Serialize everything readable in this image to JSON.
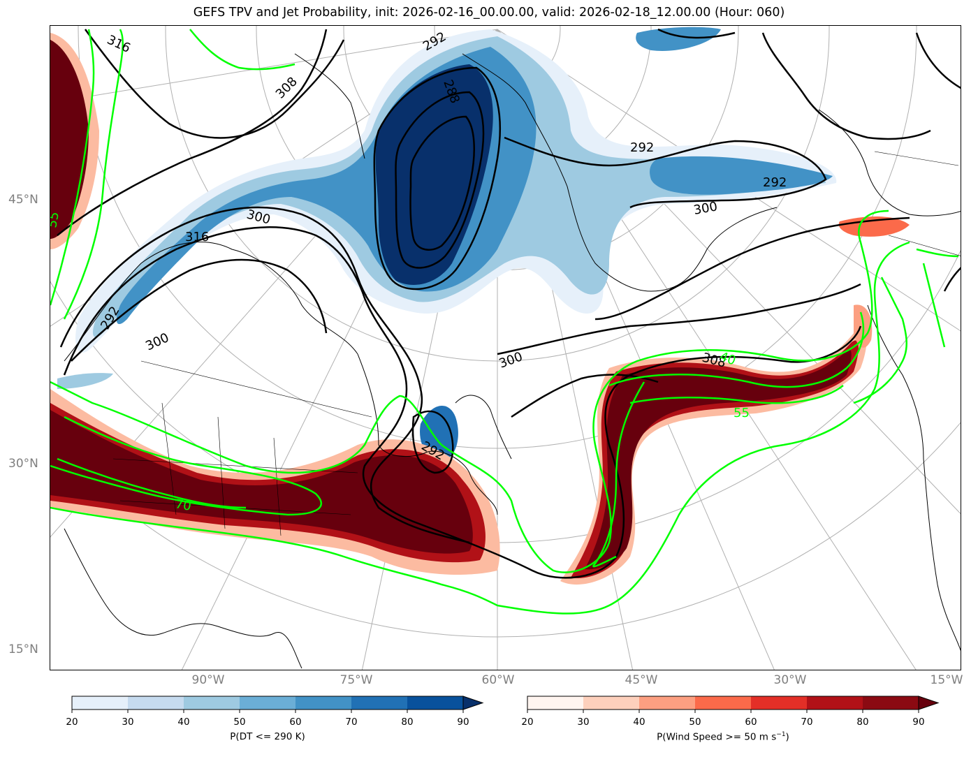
{
  "title": "GEFS TPV and Jet Probability, init: 2026-02-16_00.00.00, valid: 2026-02-18_12.00.00 (Hour: 060)",
  "lat_labels": [
    "45°N",
    "30°N",
    "15°N"
  ],
  "lon_labels": [
    "90°W",
    "75°W",
    "60°W",
    "45°W",
    "30°W",
    "15°W"
  ],
  "contour_labels": {
    "theta_black": [
      "316",
      "308",
      "292",
      "300",
      "316",
      "292",
      "300",
      "300",
      "308",
      "292",
      "300",
      "292",
      "288",
      "292"
    ],
    "jet_green": [
      "70",
      "55",
      "40",
      "55"
    ]
  },
  "colorbar_tpv": {
    "label": "P(DT <= 290 K)",
    "ticks": [
      "20",
      "30",
      "40",
      "50",
      "60",
      "70",
      "80",
      "90"
    ],
    "colors": [
      "#e6f0fa",
      "#c6dbef",
      "#9ecae1",
      "#6baed6",
      "#4292c6",
      "#2171b5",
      "#08519c",
      "#08306b"
    ]
  },
  "colorbar_jet": {
    "label": "P(Wind Speed >= 50 m s",
    "label_sup": "−1",
    "label_end": ")",
    "ticks": [
      "20",
      "30",
      "40",
      "50",
      "60",
      "70",
      "80",
      "90"
    ],
    "colors": [
      "#fff5f0",
      "#fdd0bc",
      "#fc9f81",
      "#fb6a4a",
      "#e32f27",
      "#b11117",
      "#8b0a12",
      "#67000d"
    ]
  },
  "colors": {
    "jet_contour": "#00ff00",
    "theta_contour": "#000000",
    "graticule": "#b0b0b0"
  }
}
